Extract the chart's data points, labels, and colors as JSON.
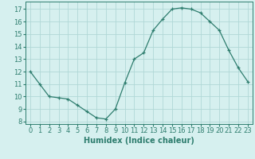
{
  "x": [
    0,
    1,
    2,
    3,
    4,
    5,
    6,
    7,
    8,
    9,
    10,
    11,
    12,
    13,
    14,
    15,
    16,
    17,
    18,
    19,
    20,
    21,
    22,
    23
  ],
  "y": [
    12.0,
    11.0,
    10.0,
    9.9,
    9.8,
    9.3,
    8.8,
    8.3,
    8.2,
    9.0,
    11.1,
    13.0,
    13.5,
    15.3,
    16.2,
    17.0,
    17.1,
    17.0,
    16.7,
    16.0,
    15.3,
    13.7,
    12.3,
    11.2
  ],
  "line_color": "#2e7d6e",
  "marker": "+",
  "bg_color": "#d6f0ef",
  "grid_color": "#b0d8d6",
  "xlabel": "Humidex (Indice chaleur)",
  "xlim": [
    -0.5,
    23.5
  ],
  "ylim": [
    7.8,
    17.6
  ],
  "yticks": [
    8,
    9,
    10,
    11,
    12,
    13,
    14,
    15,
    16,
    17
  ],
  "xticks": [
    0,
    1,
    2,
    3,
    4,
    5,
    6,
    7,
    8,
    9,
    10,
    11,
    12,
    13,
    14,
    15,
    16,
    17,
    18,
    19,
    20,
    21,
    22,
    23
  ],
  "axis_color": "#2e7d6e",
  "label_fontsize": 7,
  "tick_fontsize": 6
}
